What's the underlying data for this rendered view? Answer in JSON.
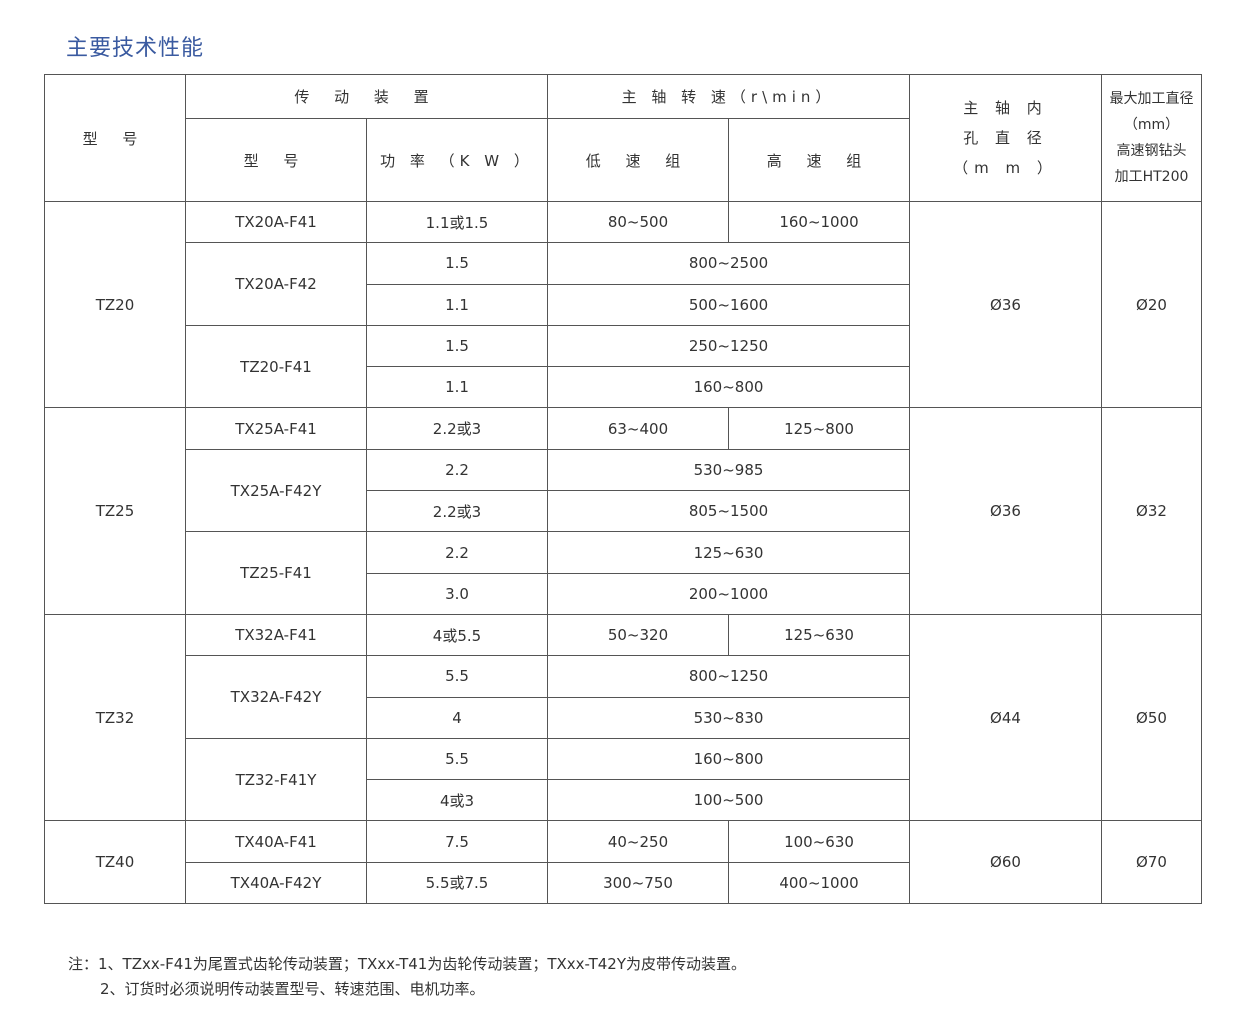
{
  "title": "主要技术性能",
  "header": {
    "model": "型 号",
    "drive": "传 动 装 置",
    "drive_model": "型 号",
    "power": "功 率 （K W ）",
    "speed": "主 轴 转 速（r\\min）",
    "low": "低 速 组",
    "high": "高 速 组",
    "bore": [
      "主 轴 内",
      "孔 直 径",
      "（m m ）"
    ],
    "max": [
      "最大加工直径",
      "（mm）",
      "高速钢钻头",
      "加工HT200"
    ]
  },
  "groups": [
    {
      "model": "TZ20",
      "bore": "Ø36",
      "max": "Ø20",
      "drives": [
        {
          "model": "TX20A-F41",
          "rows": [
            {
              "power": "1.1或1.5",
              "low": "80~500",
              "high": "160~1000"
            }
          ]
        },
        {
          "model": "TX20A-F42",
          "rows": [
            {
              "power": "1.5",
              "speed": "800~2500"
            },
            {
              "power": "1.1",
              "speed": "500~1600"
            }
          ]
        },
        {
          "model": "TZ20-F41",
          "rows": [
            {
              "power": "1.5",
              "speed": "250~1250"
            },
            {
              "power": "1.1",
              "speed": "160~800"
            }
          ]
        }
      ]
    },
    {
      "model": "TZ25",
      "bore": "Ø36",
      "max": "Ø32",
      "drives": [
        {
          "model": "TX25A-F41",
          "rows": [
            {
              "power": "2.2或3",
              "low": "63~400",
              "high": "125~800"
            }
          ]
        },
        {
          "model": "TX25A-F42Y",
          "rows": [
            {
              "power": "2.2",
              "speed": "530~985"
            },
            {
              "power": "2.2或3",
              "speed": "805~1500"
            }
          ]
        },
        {
          "model": "TZ25-F41",
          "rows": [
            {
              "power": "2.2",
              "speed": "125~630"
            },
            {
              "power": "3.0",
              "speed": "200~1000"
            }
          ]
        }
      ]
    },
    {
      "model": "TZ32",
      "bore": "Ø44",
      "max": "Ø50",
      "drives": [
        {
          "model": "TX32A-F41",
          "rows": [
            {
              "power": "4或5.5",
              "low": "50~320",
              "high": "125~630"
            }
          ]
        },
        {
          "model": "TX32A-F42Y",
          "rows": [
            {
              "power": "5.5",
              "speed": "800~1250"
            },
            {
              "power": "4",
              "speed": "530~830"
            }
          ]
        },
        {
          "model": "TZ32-F41Y",
          "rows": [
            {
              "power": "5.5",
              "speed": "160~800"
            },
            {
              "power": "4或3",
              "speed": "100~500"
            }
          ]
        }
      ]
    },
    {
      "model": "TZ40",
      "bore": "Ø60",
      "max": "Ø70",
      "drives": [
        {
          "model": "TX40A-F41",
          "rows": [
            {
              "power": "7.5",
              "low": "40~250",
              "high": "100~630"
            }
          ]
        },
        {
          "model": "TX40A-F42Y",
          "rows": [
            {
              "power": "5.5或7.5",
              "low": "300~750",
              "high": "400~1000"
            }
          ]
        }
      ]
    }
  ],
  "notes": [
    "注：1、TZxx-F41为尾置式齿轮传动装置；TXxx-T41为齿轮传动装置；TXxx-T42Y为皮带传动装置。",
    "2、订货时必须说明传动装置型号、转速范围、电机功率。"
  ],
  "colors": {
    "title": "#3a5aa0",
    "border": "#555555"
  }
}
